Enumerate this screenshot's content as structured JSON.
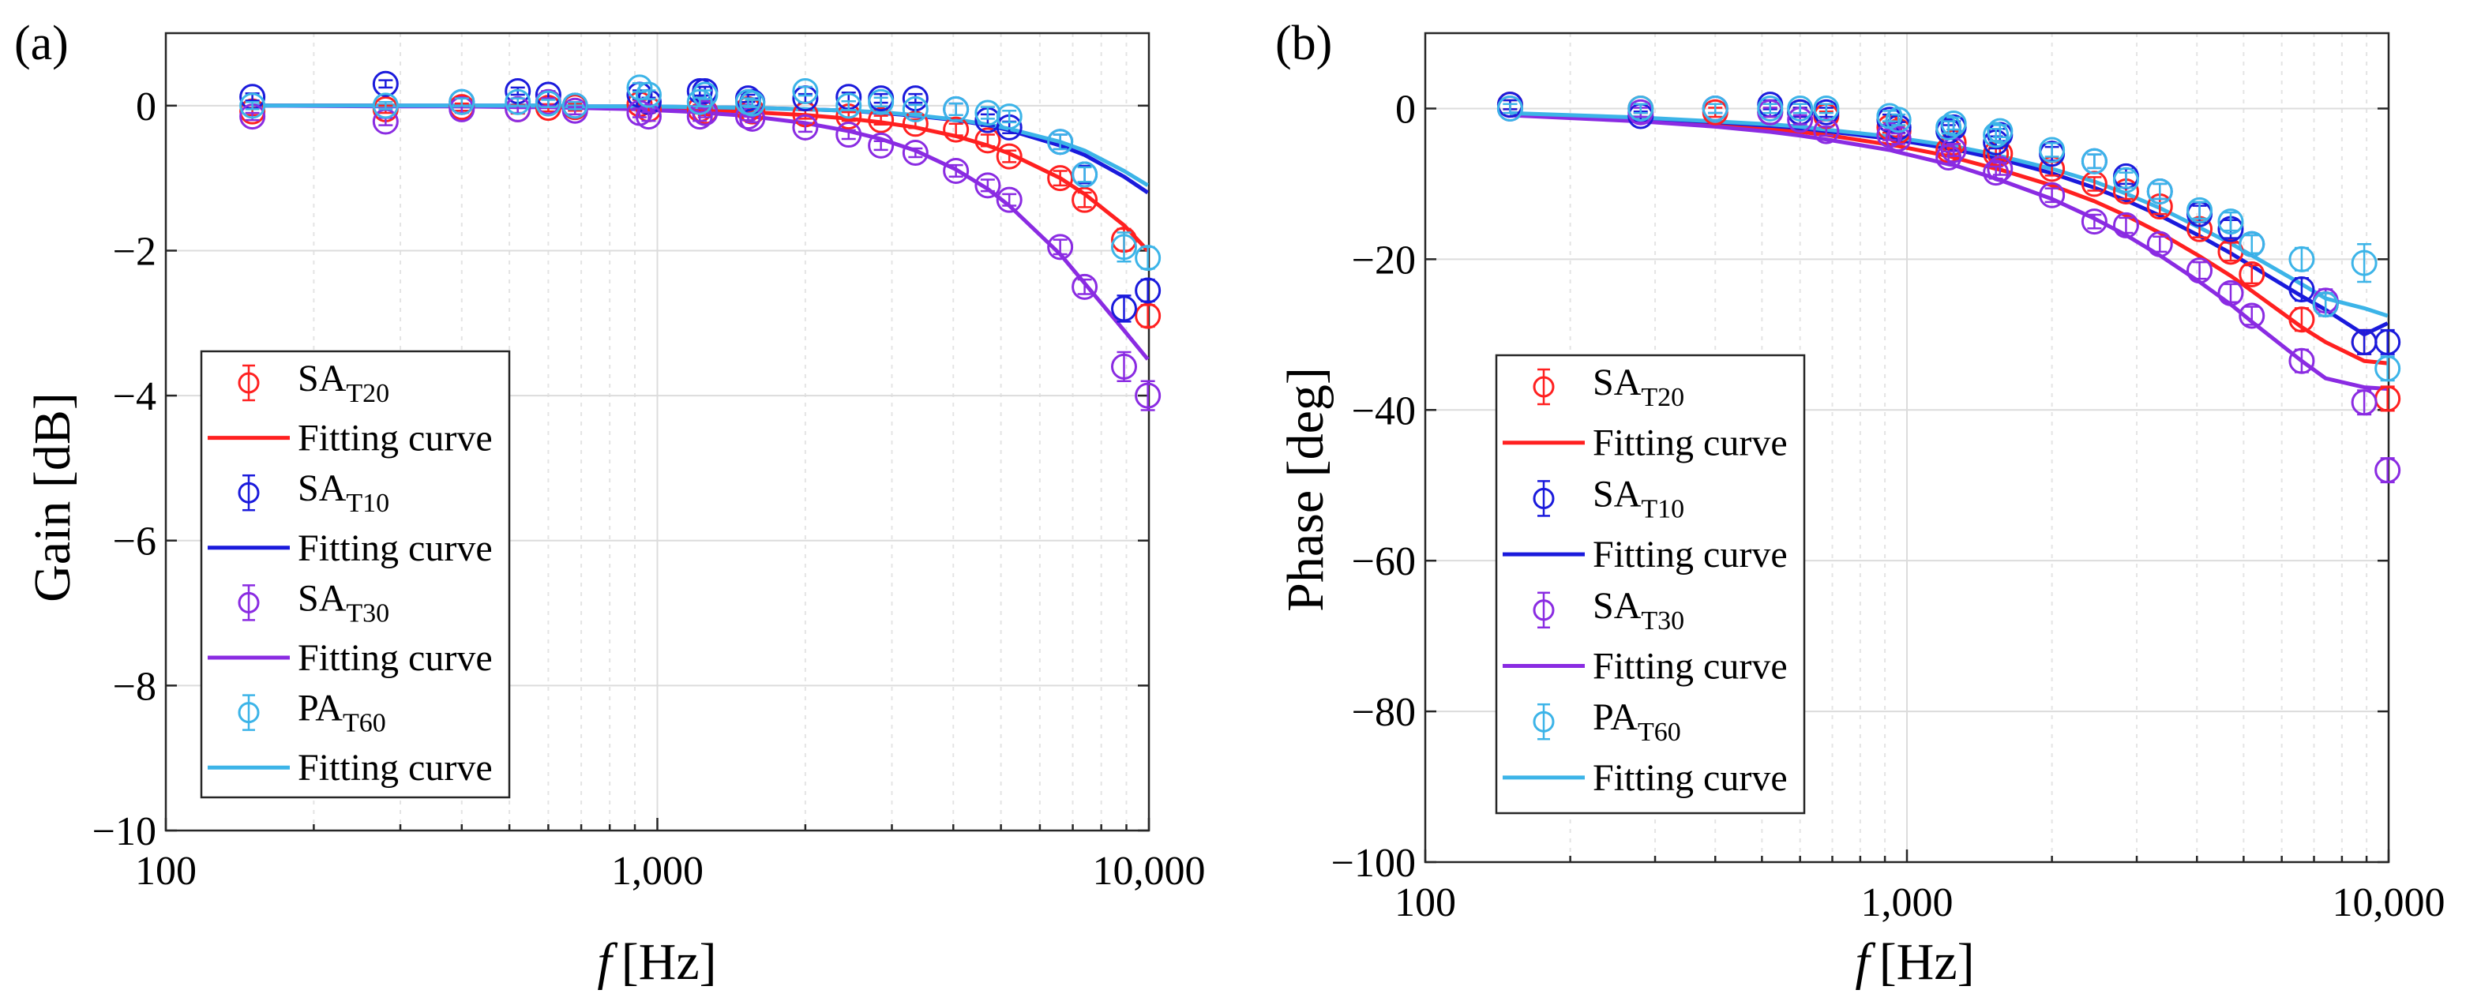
{
  "chart_data": [
    {
      "type": "line",
      "panel_label": "(a)",
      "xlabel_italic": "f",
      "xlabel_unit": "[Hz]",
      "ylabel": "Gain [dB]",
      "xscale": "log",
      "xlim": [
        100,
        10000
      ],
      "ylim": [
        -10,
        1
      ],
      "xticks": [
        100,
        1000,
        10000
      ],
      "xtick_labels": [
        "100",
        "1,000",
        "10,000"
      ],
      "yticks": [
        0,
        -2,
        -4,
        -6,
        -8,
        -10
      ],
      "ytick_labels": [
        "0",
        "−2",
        "−4",
        "−6",
        "−8",
        "−10"
      ],
      "grid": true,
      "legend_position": "left",
      "x": [
        150,
        280,
        400,
        520,
        600,
        680,
        920,
        960,
        1220,
        1250,
        1530,
        1560,
        2000,
        2450,
        2850,
        3350,
        4050,
        4700,
        5200,
        6600,
        7400,
        8900,
        9950
      ],
      "series": [
        {
          "name": "SA",
          "sub": "T20",
          "color": "#ff2020",
          "y": [
            -0.08,
            -0.05,
            -0.02,
            -0.05,
            -0.03,
            -0.02,
            0.02,
            -0.05,
            -0.05,
            -0.08,
            -0.05,
            -0.08,
            -0.12,
            -0.15,
            -0.2,
            -0.25,
            -0.33,
            -0.48,
            -0.7,
            -1.0,
            -1.3,
            -1.85,
            -2.9
          ],
          "err": [
            0.05,
            0.05,
            0.05,
            0.06,
            0.05,
            0.05,
            0.06,
            0.05,
            0.06,
            0.05,
            0.05,
            0.05,
            0.06,
            0.06,
            0.06,
            0.06,
            0.08,
            0.08,
            0.08,
            0.1,
            0.1,
            0.15,
            0.15
          ]
        },
        {
          "name": "Fitting curve",
          "color": "#ff2020",
          "fit": [
            0,
            0,
            -0.01,
            -0.01,
            -0.01,
            -0.02,
            -0.03,
            -0.04,
            -0.05,
            -0.06,
            -0.08,
            -0.09,
            -0.13,
            -0.18,
            -0.23,
            -0.3,
            -0.42,
            -0.55,
            -0.66,
            -1.0,
            -1.22,
            -1.65,
            -2.0
          ]
        },
        {
          "name": "SA",
          "sub": "T10",
          "color": "#1a1adc",
          "y": [
            0.12,
            0.3,
            0.05,
            0.2,
            0.15,
            0.0,
            0.15,
            0.05,
            0.2,
            0.2,
            0.1,
            0.05,
            0.1,
            0.12,
            0.1,
            0.1,
            -0.05,
            -0.2,
            -0.3,
            -0.5,
            -0.95,
            -2.8,
            -2.55
          ],
          "err": [
            0.05,
            0.05,
            0.05,
            0.05,
            0.05,
            0.05,
            0.06,
            0.06,
            0.06,
            0.06,
            0.05,
            0.05,
            0.06,
            0.06,
            0.06,
            0.06,
            0.08,
            0.08,
            0.08,
            0.1,
            0.12,
            0.18,
            0.15
          ]
        },
        {
          "name": "Fitting curve",
          "color": "#1a1adc",
          "fit": [
            0,
            0,
            0,
            0,
            0,
            -0.01,
            -0.01,
            -0.01,
            -0.02,
            -0.02,
            -0.03,
            -0.03,
            -0.05,
            -0.07,
            -0.1,
            -0.14,
            -0.2,
            -0.27,
            -0.34,
            -0.55,
            -0.68,
            -0.98,
            -1.2
          ]
        },
        {
          "name": "SA",
          "sub": "T30",
          "color": "#8a2be2",
          "y": [
            -0.15,
            -0.22,
            -0.05,
            -0.05,
            0.05,
            -0.07,
            -0.1,
            -0.15,
            -0.15,
            -0.1,
            -0.15,
            -0.18,
            -0.3,
            -0.4,
            -0.55,
            -0.65,
            -0.9,
            -1.1,
            -1.3,
            -1.95,
            -2.5,
            -3.6,
            -4.0
          ],
          "err": [
            0.05,
            0.05,
            0.05,
            0.05,
            0.05,
            0.05,
            0.06,
            0.06,
            0.06,
            0.06,
            0.05,
            0.05,
            0.06,
            0.06,
            0.06,
            0.06,
            0.08,
            0.08,
            0.08,
            0.1,
            0.1,
            0.2,
            0.2
          ]
        },
        {
          "name": "Fitting curve",
          "color": "#8a2be2",
          "fit": [
            0,
            -0.01,
            -0.01,
            -0.02,
            -0.02,
            -0.03,
            -0.05,
            -0.06,
            -0.09,
            -0.1,
            -0.14,
            -0.15,
            -0.24,
            -0.35,
            -0.46,
            -0.62,
            -0.88,
            -1.15,
            -1.38,
            -2.05,
            -2.45,
            -3.1,
            -3.5
          ]
        },
        {
          "name": "PA",
          "sub": "T60",
          "color": "#3cb4e8",
          "y": [
            0.0,
            0.0,
            0.05,
            0.05,
            0.03,
            0.0,
            0.25,
            0.15,
            0.05,
            0.15,
            0.05,
            0.03,
            0.2,
            0.0,
            0.05,
            -0.05,
            -0.05,
            -0.1,
            -0.15,
            -0.5,
            -0.95,
            -1.95,
            -2.1
          ],
          "err": [
            0.05,
            0.05,
            0.05,
            0.05,
            0.05,
            0.05,
            0.06,
            0.06,
            0.06,
            0.06,
            0.05,
            0.05,
            0.06,
            0.06,
            0.06,
            0.06,
            0.08,
            0.08,
            0.08,
            0.1,
            0.1,
            0.2,
            0.15
          ]
        },
        {
          "name": "Fitting curve",
          "color": "#3cb4e8",
          "fit": [
            0,
            0,
            0,
            0,
            0,
            -0.01,
            -0.01,
            -0.01,
            -0.02,
            -0.02,
            -0.03,
            -0.03,
            -0.05,
            -0.07,
            -0.09,
            -0.13,
            -0.19,
            -0.26,
            -0.32,
            -0.5,
            -0.62,
            -0.9,
            -1.1
          ]
        }
      ]
    },
    {
      "type": "line",
      "panel_label": "(b)",
      "xlabel_italic": "f",
      "xlabel_unit": "[Hz]",
      "ylabel": "Phase [deg]",
      "xscale": "log",
      "xlim": [
        100,
        10000
      ],
      "ylim": [
        -100,
        10
      ],
      "xticks": [
        100,
        1000,
        10000
      ],
      "xtick_labels": [
        "100",
        "1,000",
        "10,000"
      ],
      "yticks": [
        0,
        -20,
        -40,
        -60,
        -80,
        -100
      ],
      "ytick_labels": [
        "0",
        "−20",
        "−40",
        "−60",
        "−80",
        "−100"
      ],
      "grid": true,
      "legend_position": "left",
      "x": [
        150,
        280,
        400,
        520,
        600,
        680,
        920,
        960,
        1220,
        1250,
        1530,
        1560,
        2000,
        2450,
        2850,
        3350,
        4050,
        4700,
        5200,
        6600,
        7400,
        8900,
        9950
      ],
      "series": [
        {
          "name": "SA",
          "sub": "T20",
          "color": "#ff2020",
          "y": [
            0.5,
            0,
            -0.5,
            -0.5,
            -0.5,
            -1,
            -2.5,
            -3,
            -5.5,
            -4.5,
            -6,
            -6,
            -8,
            -10,
            -11,
            -13,
            -16,
            -19,
            -22,
            -28,
            -26,
            -31,
            -38.5
          ],
          "err": [
            0.6,
            0.6,
            0.6,
            0.6,
            0.6,
            0.6,
            0.7,
            0.7,
            0.8,
            0.8,
            0.8,
            0.8,
            0.9,
            0.9,
            1.0,
            1.0,
            1.1,
            1.2,
            1.2,
            1.5,
            1.5,
            1.6,
            1.6
          ]
        },
        {
          "name": "Fitting curve",
          "color": "#ff2020",
          "fit": [
            -0.8,
            -1.5,
            -2.1,
            -2.7,
            -3.1,
            -3.5,
            -4.8,
            -5.0,
            -6.3,
            -6.5,
            -8.0,
            -8.1,
            -10.2,
            -12.3,
            -14.2,
            -16.5,
            -19.6,
            -22.2,
            -24.2,
            -29.0,
            -31.0,
            -33.5,
            -33.8
          ]
        },
        {
          "name": "SA",
          "sub": "T10",
          "color": "#1a1adc",
          "y": [
            0.5,
            -1,
            0,
            0.5,
            -0.5,
            -0.5,
            -1.5,
            -2.5,
            -3,
            -2.5,
            -4.5,
            -3.5,
            -6,
            -7,
            -9,
            -11,
            -14,
            -16,
            -18,
            -24,
            -26,
            -31,
            -31
          ],
          "err": [
            0.6,
            0.6,
            0.6,
            0.6,
            0.6,
            0.6,
            0.7,
            0.7,
            0.8,
            0.8,
            0.8,
            0.8,
            0.9,
            0.9,
            1.0,
            1.0,
            1.1,
            1.2,
            1.2,
            1.5,
            1.5,
            1.6,
            1.6
          ]
        },
        {
          "name": "Fitting curve",
          "color": "#1a1adc",
          "fit": [
            -0.7,
            -1.3,
            -1.8,
            -2.3,
            -2.6,
            -3.0,
            -4.0,
            -4.2,
            -5.3,
            -5.4,
            -6.6,
            -6.7,
            -8.6,
            -10.5,
            -12.2,
            -14.2,
            -16.9,
            -19.2,
            -20.9,
            -24.9,
            -26.7,
            -30.0,
            -28.5
          ]
        },
        {
          "name": "SA",
          "sub": "T30",
          "color": "#8a2be2",
          "y": [
            0,
            -0.5,
            0,
            -0.5,
            -1.5,
            -3,
            -3.5,
            -4,
            -6.5,
            -5.5,
            -8.5,
            -8,
            -11.5,
            -15,
            -15.5,
            -18,
            -21.5,
            -24.5,
            -27.5,
            -33.5,
            -25.5,
            -39,
            -48
          ],
          "err": [
            0.6,
            0.6,
            0.6,
            0.6,
            0.6,
            0.6,
            0.7,
            0.7,
            0.8,
            0.8,
            0.8,
            0.8,
            0.9,
            0.9,
            1.0,
            1.0,
            1.1,
            1.2,
            1.2,
            1.5,
            1.5,
            1.6,
            1.6
          ]
        },
        {
          "name": "Fitting curve",
          "color": "#8a2be2",
          "fit": [
            -0.9,
            -1.7,
            -2.4,
            -3.1,
            -3.6,
            -4.1,
            -5.5,
            -5.8,
            -7.4,
            -7.5,
            -9.3,
            -9.5,
            -12.0,
            -14.6,
            -16.8,
            -19.5,
            -23.0,
            -26.0,
            -28.3,
            -33.5,
            -35.8,
            -37.0,
            -37.2
          ]
        },
        {
          "name": "PA",
          "sub": "T60",
          "color": "#3cb4e8",
          "y": [
            0,
            0,
            0,
            0,
            0,
            0,
            -1,
            -1.5,
            -2.5,
            -2,
            -3.5,
            -3,
            -5.5,
            -7,
            -9.5,
            -11,
            -13.5,
            -15,
            -18,
            -20,
            -26,
            -20.5,
            -34.5
          ],
          "err": [
            0.6,
            0.6,
            0.6,
            0.6,
            0.6,
            0.6,
            0.7,
            0.7,
            0.8,
            0.8,
            0.8,
            0.8,
            0.9,
            0.9,
            1.0,
            1.0,
            1.1,
            1.2,
            1.2,
            1.5,
            1.5,
            2.5,
            1.6
          ]
        },
        {
          "name": "Fitting curve",
          "color": "#3cb4e8",
          "fit": [
            -0.6,
            -1.2,
            -1.7,
            -2.1,
            -2.4,
            -2.8,
            -3.7,
            -3.9,
            -4.9,
            -5.0,
            -6.1,
            -6.3,
            -8.0,
            -9.7,
            -11.3,
            -13.2,
            -15.8,
            -17.9,
            -19.5,
            -23.3,
            -25.2,
            -26.5,
            -27.5
          ]
        }
      ]
    }
  ]
}
